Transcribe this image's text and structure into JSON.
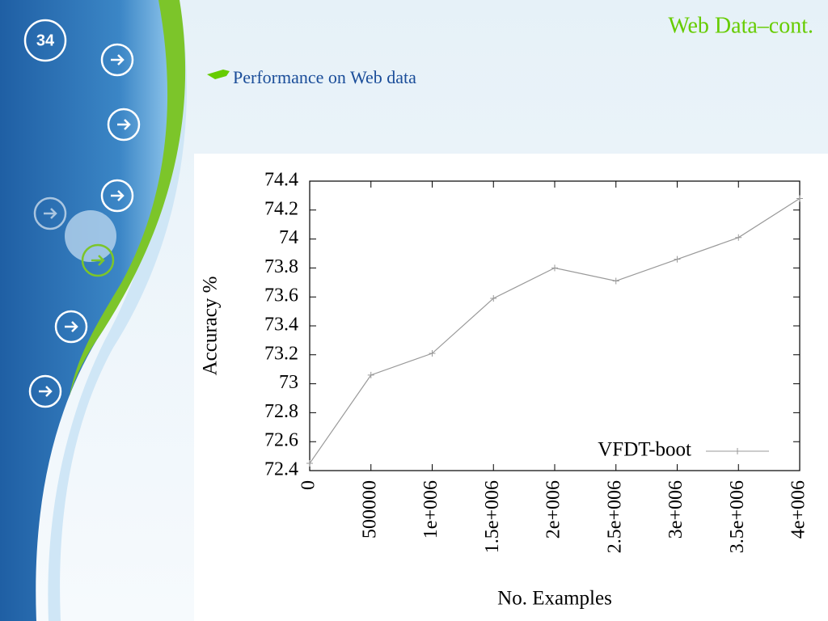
{
  "slide": {
    "number": "34",
    "title": "Web Data–cont.",
    "bullet": "Performance on Web data"
  },
  "chart_data": {
    "type": "line",
    "xlabel": "No. Examples",
    "ylabel": "Accuracy %",
    "x": [
      0,
      500000,
      1000000,
      1500000,
      2000000,
      2500000,
      3000000,
      3500000,
      4000000
    ],
    "series": [
      {
        "name": "VFDT-boot",
        "color": "#999999",
        "values": [
          72.45,
          73.06,
          73.21,
          73.59,
          73.8,
          73.71,
          73.86,
          74.01,
          74.28
        ]
      }
    ],
    "xlim": [
      0,
      4000000
    ],
    "xticks": [
      0,
      500000,
      {
        "value": 1000000,
        "label": "1e+006"
      },
      {
        "value": 1500000,
        "label": "1.5e+006"
      },
      {
        "value": 2000000,
        "label": "2e+006"
      },
      {
        "value": 2500000,
        "label": "2.5e+006"
      },
      {
        "value": 3000000,
        "label": "3e+006"
      },
      {
        "value": 3500000,
        "label": "3.5e+006"
      },
      {
        "value": 4000000,
        "label": "4e+006"
      }
    ],
    "ylim": [
      72.4,
      74.4
    ],
    "yticks": [
      72.4,
      72.6,
      72.8,
      73,
      73.2,
      73.4,
      73.6,
      73.8,
      74,
      74.2,
      74.4
    ],
    "grid": false,
    "legend": "lower right"
  }
}
